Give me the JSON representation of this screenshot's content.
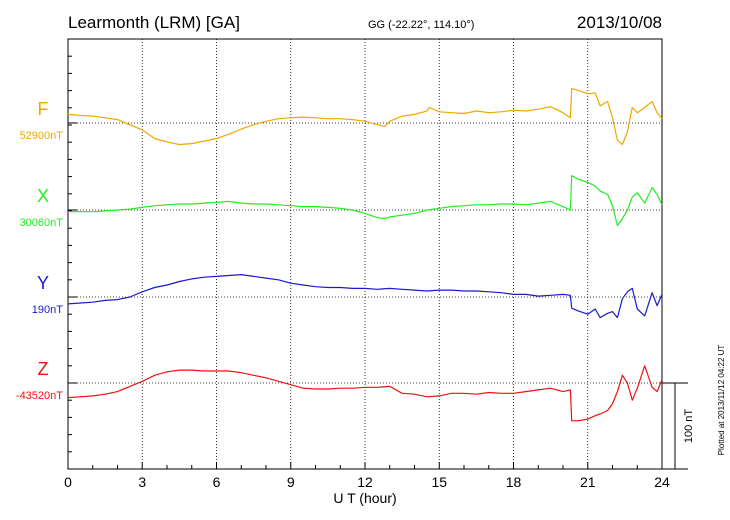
{
  "header": {
    "station": "Learmonth (LRM)  [GA]",
    "coords": "GG (-22.22°, 114.10°)",
    "date": "2013/10/08"
  },
  "footer": {
    "plotted": "Plotted at 2013/11/12 04:22 UT",
    "scale_label": "100 nT"
  },
  "chart_data": {
    "type": "line",
    "title": "Learmonth (LRM)  [GA]",
    "xlabel": "U T (hour)",
    "ylabel": "",
    "xlim": [
      0,
      24
    ],
    "xticks": [
      "0",
      "3",
      "6",
      "9",
      "12",
      "15",
      "18",
      "21",
      "24"
    ],
    "grid": true,
    "scale_bar_nT": 100,
    "series": [
      {
        "name": "F",
        "baseline_label": "52900nT",
        "color": "#f0a800",
        "baseline_nT": 52900,
        "points": [
          [
            0,
            52910
          ],
          [
            0.5,
            52909
          ],
          [
            1,
            52908
          ],
          [
            1.5,
            52906
          ],
          [
            2,
            52904
          ],
          [
            2.5,
            52898
          ],
          [
            3,
            52892
          ],
          [
            3.5,
            52882
          ],
          [
            4,
            52878
          ],
          [
            4.5,
            52875
          ],
          [
            5,
            52876
          ],
          [
            5.5,
            52879
          ],
          [
            6,
            52882
          ],
          [
            6.5,
            52887
          ],
          [
            7,
            52893
          ],
          [
            7.5,
            52898
          ],
          [
            8,
            52902
          ],
          [
            8.5,
            52905
          ],
          [
            9,
            52906
          ],
          [
            9.5,
            52907
          ],
          [
            10,
            52906
          ],
          [
            10.5,
            52905
          ],
          [
            11,
            52905
          ],
          [
            11.5,
            52904
          ],
          [
            12,
            52902
          ],
          [
            12.5,
            52898
          ],
          [
            12.8,
            52896
          ],
          [
            13,
            52902
          ],
          [
            13.5,
            52908
          ],
          [
            14,
            52910
          ],
          [
            14.5,
            52914
          ],
          [
            14.6,
            52918
          ],
          [
            15,
            52913
          ],
          [
            15.5,
            52912
          ],
          [
            16,
            52911
          ],
          [
            16.5,
            52914
          ],
          [
            17,
            52912
          ],
          [
            17.5,
            52913
          ],
          [
            18,
            52915
          ],
          [
            18.5,
            52914
          ],
          [
            19,
            52916
          ],
          [
            19.5,
            52919
          ],
          [
            20,
            52912
          ],
          [
            20.3,
            52906
          ],
          [
            20.35,
            52940
          ],
          [
            20.6,
            52938
          ],
          [
            21,
            52934
          ],
          [
            21.3,
            52935
          ],
          [
            21.5,
            52920
          ],
          [
            21.8,
            52925
          ],
          [
            22,
            52906
          ],
          [
            22.2,
            52880
          ],
          [
            22.4,
            52875
          ],
          [
            22.6,
            52890
          ],
          [
            22.8,
            52918
          ],
          [
            23,
            52912
          ],
          [
            23.3,
            52918
          ],
          [
            23.6,
            52925
          ],
          [
            23.8,
            52912
          ],
          [
            24,
            52905
          ]
        ]
      },
      {
        "name": "X",
        "baseline_label": "30060nT",
        "color": "#22ee22",
        "baseline_nT": 30060,
        "points": [
          [
            0,
            30058
          ],
          [
            0.5,
            30058
          ],
          [
            1,
            30058
          ],
          [
            1.5,
            30059
          ],
          [
            2,
            30060
          ],
          [
            2.5,
            30061
          ],
          [
            3,
            30063
          ],
          [
            3.5,
            30065
          ],
          [
            4,
            30066
          ],
          [
            4.5,
            30067
          ],
          [
            5,
            30067
          ],
          [
            5.5,
            30068
          ],
          [
            6,
            30069
          ],
          [
            6.5,
            30070
          ],
          [
            7,
            30068
          ],
          [
            7.5,
            30067
          ],
          [
            8,
            30067
          ],
          [
            8.5,
            30066
          ],
          [
            9,
            30065
          ],
          [
            9.5,
            30064
          ],
          [
            10,
            30064
          ],
          [
            10.5,
            30063
          ],
          [
            11,
            30062
          ],
          [
            11.5,
            30060
          ],
          [
            12,
            30056
          ],
          [
            12.5,
            30051
          ],
          [
            12.8,
            30050
          ],
          [
            13,
            30052
          ],
          [
            13.5,
            30054
          ],
          [
            14,
            30056
          ],
          [
            14.5,
            30060
          ],
          [
            15,
            30062
          ],
          [
            15.5,
            30064
          ],
          [
            16,
            30065
          ],
          [
            16.5,
            30066
          ],
          [
            17,
            30066
          ],
          [
            17.5,
            30067
          ],
          [
            18,
            30067
          ],
          [
            18.5,
            30066
          ],
          [
            19,
            30068
          ],
          [
            19.5,
            30070
          ],
          [
            20,
            30064
          ],
          [
            20.3,
            30060
          ],
          [
            20.35,
            30100
          ],
          [
            20.6,
            30096
          ],
          [
            21,
            30092
          ],
          [
            21.3,
            30088
          ],
          [
            21.5,
            30082
          ],
          [
            21.8,
            30078
          ],
          [
            22,
            30065
          ],
          [
            22.2,
            30042
          ],
          [
            22.4,
            30050
          ],
          [
            22.6,
            30060
          ],
          [
            22.8,
            30075
          ],
          [
            23,
            30080
          ],
          [
            23.3,
            30068
          ],
          [
            23.6,
            30086
          ],
          [
            23.8,
            30078
          ],
          [
            24,
            30066
          ]
        ]
      },
      {
        "name": "Y",
        "baseline_label": "190nT",
        "color": "#1a1acc",
        "baseline_nT": 190,
        "points": [
          [
            0,
            182
          ],
          [
            0.5,
            183
          ],
          [
            1,
            184
          ],
          [
            1.5,
            186
          ],
          [
            2,
            187
          ],
          [
            2.5,
            190
          ],
          [
            3,
            196
          ],
          [
            3.5,
            201
          ],
          [
            4,
            204
          ],
          [
            4.5,
            208
          ],
          [
            5,
            211
          ],
          [
            5.5,
            213
          ],
          [
            6,
            214
          ],
          [
            6.5,
            215
          ],
          [
            7,
            216
          ],
          [
            7.5,
            214
          ],
          [
            8,
            212
          ],
          [
            8.5,
            210
          ],
          [
            9,
            206
          ],
          [
            9.5,
            204
          ],
          [
            10,
            202
          ],
          [
            10.5,
            201
          ],
          [
            11,
            201
          ],
          [
            11.5,
            200
          ],
          [
            12,
            200
          ],
          [
            12.5,
            199
          ],
          [
            13,
            200
          ],
          [
            13.5,
            199
          ],
          [
            14,
            198
          ],
          [
            14.5,
            197
          ],
          [
            15,
            198
          ],
          [
            15.5,
            198
          ],
          [
            16,
            197
          ],
          [
            16.5,
            197
          ],
          [
            17,
            196
          ],
          [
            17.5,
            195
          ],
          [
            18,
            193
          ],
          [
            18.5,
            193
          ],
          [
            19,
            191
          ],
          [
            19.5,
            192
          ],
          [
            20,
            193
          ],
          [
            20.3,
            192
          ],
          [
            20.35,
            177
          ],
          [
            20.6,
            174
          ],
          [
            21,
            170
          ],
          [
            21.3,
            176
          ],
          [
            21.5,
            166
          ],
          [
            21.8,
            171
          ],
          [
            22,
            173
          ],
          [
            22.2,
            166
          ],
          [
            22.4,
            188
          ],
          [
            22.6,
            196
          ],
          [
            22.8,
            200
          ],
          [
            23,
            176
          ],
          [
            23.3,
            168
          ],
          [
            23.6,
            195
          ],
          [
            23.8,
            180
          ],
          [
            24,
            193
          ]
        ]
      },
      {
        "name": "Z",
        "baseline_label": "-43520nT",
        "color": "#ee1111",
        "baseline_nT": -43520,
        "points": [
          [
            0,
            -43537
          ],
          [
            0.5,
            -43536
          ],
          [
            1,
            -43535
          ],
          [
            1.5,
            -43533
          ],
          [
            2,
            -43530
          ],
          [
            2.5,
            -43524
          ],
          [
            3,
            -43518
          ],
          [
            3.5,
            -43511
          ],
          [
            4,
            -43507
          ],
          [
            4.5,
            -43505
          ],
          [
            5,
            -43505
          ],
          [
            5.5,
            -43506
          ],
          [
            6,
            -43506
          ],
          [
            6.5,
            -43506
          ],
          [
            7,
            -43508
          ],
          [
            7.5,
            -43511
          ],
          [
            8,
            -43514
          ],
          [
            8.5,
            -43518
          ],
          [
            9,
            -43522
          ],
          [
            9.5,
            -43526
          ],
          [
            10,
            -43527
          ],
          [
            10.5,
            -43527
          ],
          [
            11,
            -43526
          ],
          [
            11.5,
            -43526
          ],
          [
            12,
            -43525
          ],
          [
            12.5,
            -43525
          ],
          [
            13,
            -43524
          ],
          [
            13.5,
            -43532
          ],
          [
            14,
            -43533
          ],
          [
            14.5,
            -43536
          ],
          [
            15,
            -43535
          ],
          [
            15.5,
            -43532
          ],
          [
            16,
            -43532
          ],
          [
            16.5,
            -43533
          ],
          [
            17,
            -43531
          ],
          [
            17.5,
            -43532
          ],
          [
            18,
            -43532
          ],
          [
            18.5,
            -43530
          ],
          [
            19,
            -43528
          ],
          [
            19.5,
            -43526
          ],
          [
            20,
            -43530
          ],
          [
            20.3,
            -43528
          ],
          [
            20.35,
            -43564
          ],
          [
            20.6,
            -43564
          ],
          [
            21,
            -43562
          ],
          [
            21.3,
            -43558
          ],
          [
            21.5,
            -43556
          ],
          [
            21.8,
            -43552
          ],
          [
            22,
            -43544
          ],
          [
            22.2,
            -43530
          ],
          [
            22.4,
            -43511
          ],
          [
            22.6,
            -43520
          ],
          [
            22.8,
            -43540
          ],
          [
            23,
            -43526
          ],
          [
            23.3,
            -43500
          ],
          [
            23.6,
            -43525
          ],
          [
            23.8,
            -43530
          ],
          [
            24,
            -43516
          ]
        ]
      }
    ]
  }
}
